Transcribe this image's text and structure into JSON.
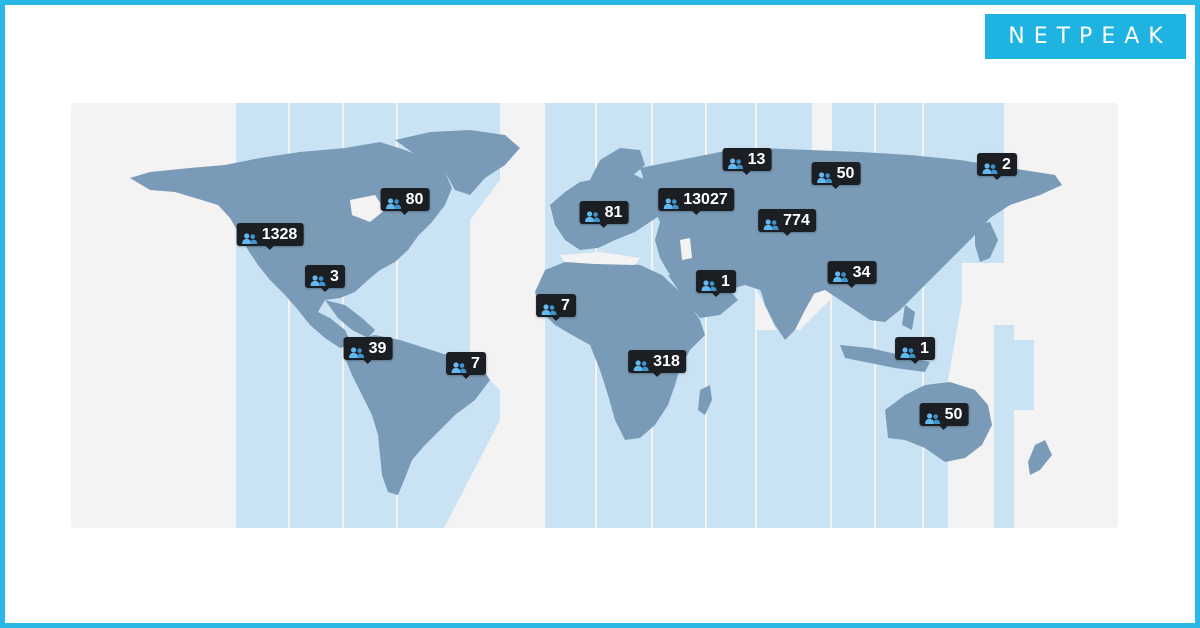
{
  "brand": {
    "logo_text": "NETPEAK",
    "accent": "#1eb3e0",
    "frame_color": "#29b7e3"
  },
  "map": {
    "land_color": "#7a9bb7",
    "timezone_color": "#c9e3f5",
    "background": "#f3f3f3"
  },
  "markers": [
    {
      "id": "canada-east",
      "count": "80",
      "icon": "users-icon"
    },
    {
      "id": "us-west",
      "count": "1328",
      "icon": "users-icon"
    },
    {
      "id": "mexico",
      "count": "3",
      "icon": "users-icon"
    },
    {
      "id": "colombia",
      "count": "39",
      "icon": "users-icon"
    },
    {
      "id": "brazil",
      "count": "7",
      "icon": "users-icon"
    },
    {
      "id": "west-africa",
      "count": "7",
      "icon": "users-icon"
    },
    {
      "id": "central-europe",
      "count": "81",
      "icon": "users-icon"
    },
    {
      "id": "eastern-europe",
      "count": "13027",
      "icon": "users-icon"
    },
    {
      "id": "north-russia",
      "count": "13",
      "icon": "users-icon"
    },
    {
      "id": "siberia",
      "count": "50",
      "icon": "users-icon"
    },
    {
      "id": "far-east-russia",
      "count": "2",
      "icon": "users-icon"
    },
    {
      "id": "kazakhstan",
      "count": "774",
      "icon": "users-icon"
    },
    {
      "id": "arabia",
      "count": "1",
      "icon": "users-icon"
    },
    {
      "id": "china",
      "count": "34",
      "icon": "users-icon"
    },
    {
      "id": "southern-africa",
      "count": "318",
      "icon": "users-icon"
    },
    {
      "id": "indonesia",
      "count": "1",
      "icon": "users-icon"
    },
    {
      "id": "australia",
      "count": "50",
      "icon": "users-icon"
    }
  ]
}
